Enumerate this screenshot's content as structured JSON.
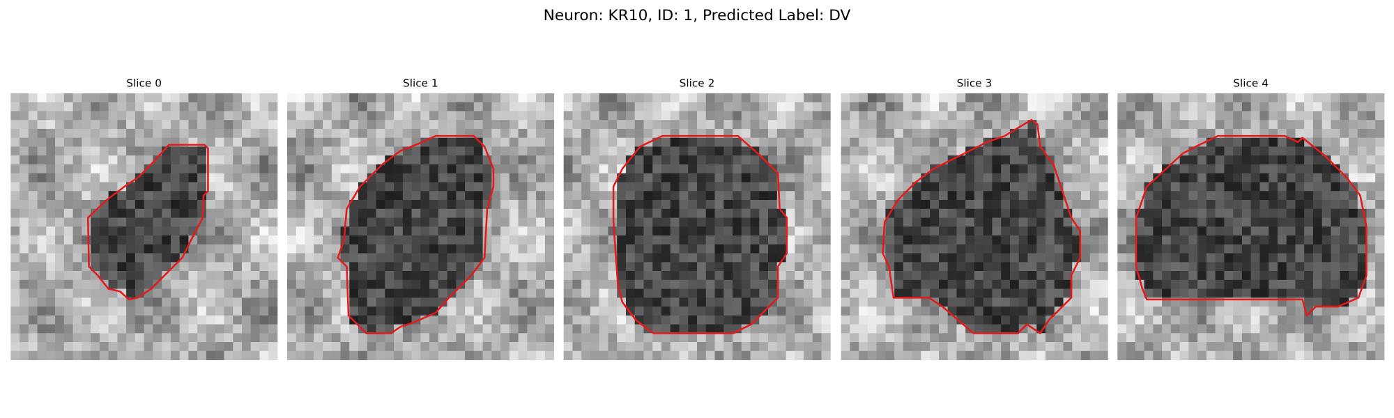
{
  "title": "Neuron: KR10, ID: 1, Predicted Label: DV",
  "panels": [
    {
      "title": "Slice 0"
    },
    {
      "title": "Slice 1"
    },
    {
      "title": "Slice 2"
    },
    {
      "title": "Slice 3"
    },
    {
      "title": "Slice 4"
    }
  ]
}
